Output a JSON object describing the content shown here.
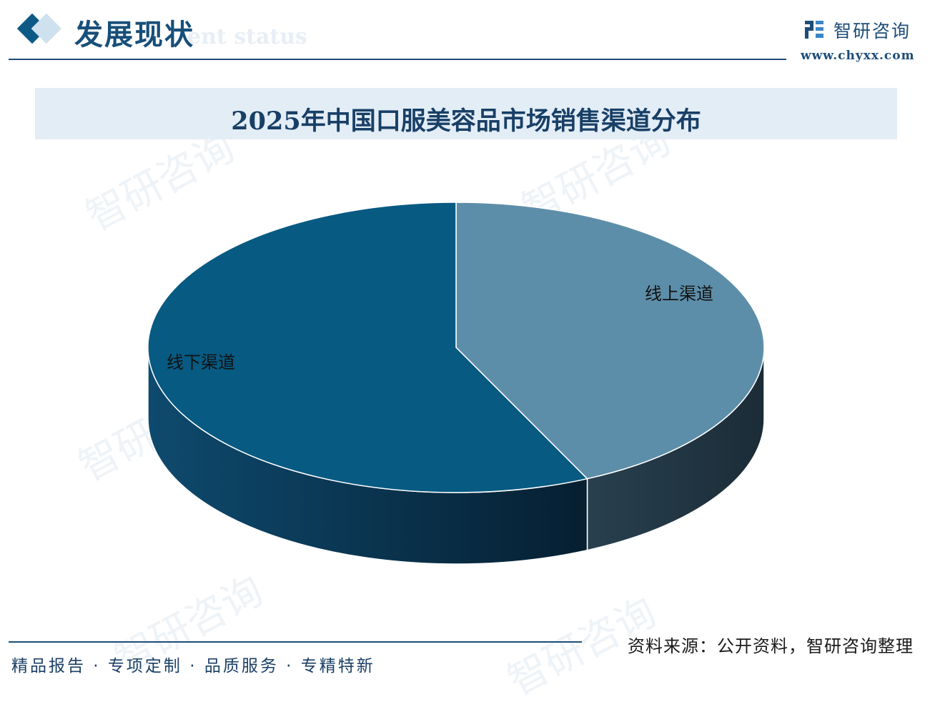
{
  "header": {
    "section_title": "发展现状",
    "section_subtitle": "ent status",
    "brand_name": "智研咨询",
    "brand_url": "www.chyxx.com",
    "brand_icon": "chyxx-logo-icon"
  },
  "watermark_text": "智研咨询",
  "colors": {
    "accent": "#0e5a87",
    "offline_top": "#075a82",
    "online_top": "#5d8ea9",
    "offline_side": "#0b3a58",
    "online_side": "#243a48",
    "title_bg": "#e3edf6"
  },
  "chart_data": {
    "type": "pie",
    "title": "2025年中国口服美容品市场销售渠道分布",
    "labels": [
      "线上渠道",
      "线下渠道"
    ],
    "values": [
      43,
      57
    ],
    "style": "3d"
  },
  "footer": {
    "slogan": "精品报告 · 专项定制 · 品质服务 · 专精特新",
    "source": "资料来源：公开资料，智研咨询整理"
  }
}
